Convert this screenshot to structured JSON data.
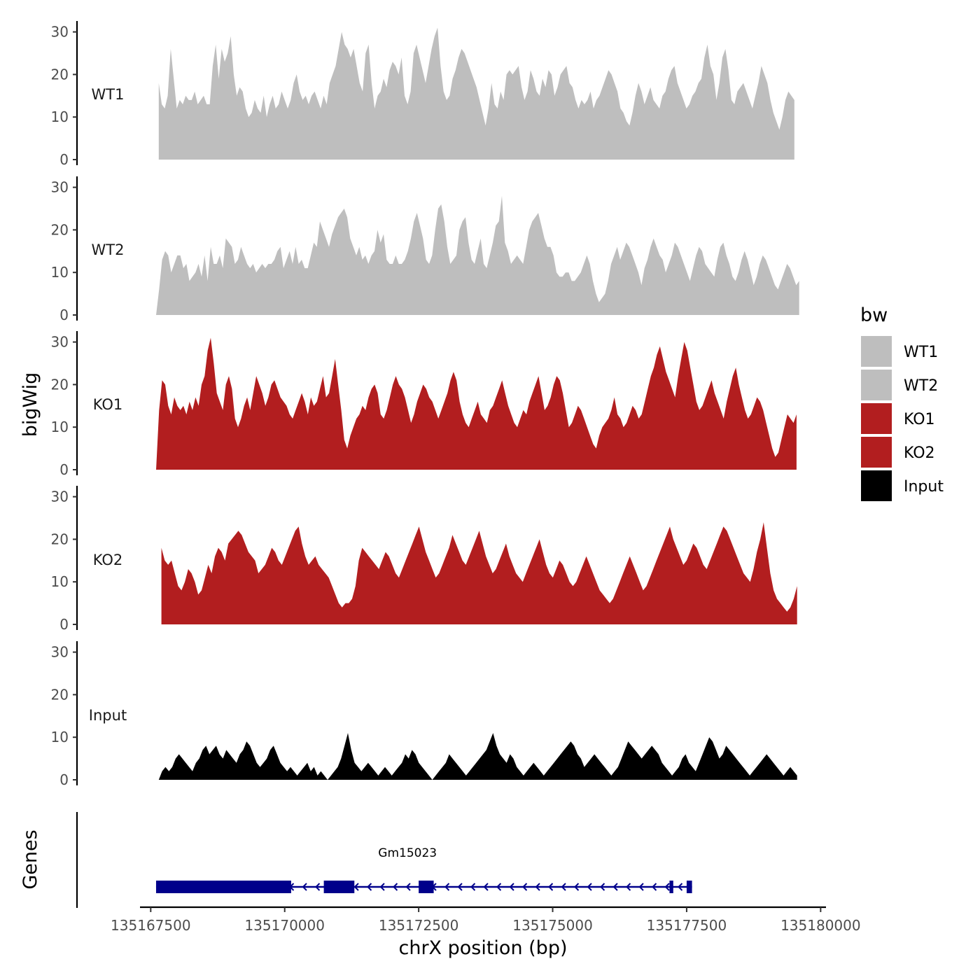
{
  "chart_data": {
    "type": "area",
    "title": "",
    "xlabel": "chrX position (bp)",
    "ylabel": "bigWig",
    "genes_label": "Genes",
    "xlim": [
      135167300,
      135180100
    ],
    "x_ticks": [
      135167500,
      135170000,
      135172500,
      135175000,
      135177500,
      135180000
    ],
    "x_tick_labels": [
      "135167500",
      "135170000",
      "135172500",
      "135175000",
      "135177500",
      "135180000"
    ],
    "ylim": [
      0,
      32
    ],
    "y_ticks": [
      0,
      10,
      20,
      30
    ],
    "y_tick_labels": [
      "0",
      "10",
      "20",
      "30"
    ],
    "legend": {
      "title": "bw",
      "position": "right",
      "entries": [
        {
          "label": "WT1",
          "color": "#bebebe"
        },
        {
          "label": "WT2",
          "color": "#bebebe"
        },
        {
          "label": "KO1",
          "color": "#b21e1f"
        },
        {
          "label": "KO2",
          "color": "#b21e1f"
        },
        {
          "label": "Input",
          "color": "#000000"
        }
      ]
    },
    "series": [
      {
        "name": "WT1",
        "color": "#bebebe",
        "start": 135167650,
        "end": 135179510,
        "values": [
          18,
          13,
          12,
          15,
          26,
          19,
          12,
          14,
          13,
          15,
          14,
          14,
          16,
          13,
          14,
          15,
          13,
          13,
          22,
          27,
          19,
          26,
          23,
          25,
          29,
          20,
          15,
          17,
          16,
          12,
          10,
          11,
          14,
          12,
          11,
          15,
          10,
          13,
          15,
          12,
          13,
          16,
          14,
          12,
          14,
          18,
          20,
          16,
          14,
          15,
          13,
          15,
          16,
          14,
          12,
          15,
          13,
          18,
          20,
          22,
          26,
          30,
          27,
          26,
          24,
          26,
          22,
          18,
          16,
          25,
          27,
          18,
          12,
          15,
          16,
          19,
          17,
          21,
          23,
          22,
          20,
          24,
          15,
          13,
          16,
          25,
          27,
          24,
          21,
          18,
          22,
          26,
          29,
          31,
          22,
          16,
          14,
          15,
          19,
          21,
          24,
          26,
          25,
          23,
          21,
          19,
          17,
          14,
          11,
          8,
          12,
          18,
          13,
          12,
          16,
          14,
          20,
          21,
          20,
          21,
          22,
          17,
          14,
          16,
          21,
          19,
          16,
          15,
          19,
          17,
          21,
          20,
          15,
          17,
          20,
          21,
          22,
          18,
          17,
          14,
          12,
          14,
          13,
          14,
          16,
          12,
          14,
          15,
          17,
          19,
          21,
          20,
          18,
          16,
          12,
          11,
          9,
          8,
          11,
          15,
          18,
          16,
          13,
          15,
          17,
          14,
          13,
          12,
          15,
          16,
          19,
          21,
          22,
          18,
          16,
          14,
          12,
          13,
          15,
          16,
          18,
          19,
          24,
          27,
          22,
          20,
          14,
          18,
          24,
          26,
          21,
          14,
          13,
          16,
          17,
          18,
          16,
          14,
          12,
          15,
          18,
          22,
          20,
          18,
          14,
          11,
          9,
          7,
          10,
          14,
          16,
          15,
          14
        ]
      },
      {
        "name": "WT2",
        "color": "#bebebe",
        "start": 135167600,
        "end": 135179600,
        "values": [
          0,
          6,
          13,
          15,
          14,
          10,
          12,
          14,
          14,
          11,
          12,
          8,
          9,
          10,
          12,
          9,
          14,
          8,
          16,
          12,
          12,
          14,
          11,
          18,
          17,
          16,
          12,
          13,
          16,
          14,
          12,
          11,
          12,
          10,
          11,
          12,
          11,
          12,
          12,
          13,
          15,
          16,
          11,
          13,
          15,
          12,
          16,
          12,
          13,
          11,
          11,
          14,
          17,
          16,
          22,
          20,
          18,
          16,
          19,
          21,
          23,
          24,
          25,
          23,
          18,
          16,
          14,
          16,
          13,
          14,
          12,
          14,
          15,
          20,
          17,
          19,
          13,
          12,
          12,
          14,
          12,
          12,
          13,
          15,
          18,
          22,
          24,
          21,
          18,
          13,
          12,
          14,
          20,
          25,
          26,
          22,
          16,
          12,
          13,
          14,
          20,
          22,
          23,
          17,
          13,
          12,
          15,
          18,
          12,
          11,
          14,
          17,
          21,
          22,
          28,
          17,
          15,
          12,
          13,
          14,
          13,
          12,
          16,
          20,
          22,
          23,
          24,
          21,
          18,
          16,
          16,
          14,
          10,
          9,
          9,
          10,
          10,
          8,
          8,
          9,
          10,
          12,
          14,
          12,
          8,
          5,
          3,
          4,
          5,
          8,
          12,
          14,
          16,
          13,
          15,
          17,
          16,
          14,
          12,
          10,
          7,
          11,
          13,
          16,
          18,
          16,
          14,
          13,
          10,
          12,
          14,
          17,
          16,
          14,
          12,
          10,
          8,
          11,
          14,
          16,
          15,
          12,
          11,
          10,
          9,
          13,
          16,
          17,
          14,
          12,
          9,
          8,
          10,
          13,
          15,
          13,
          10,
          7,
          9,
          12,
          14,
          13,
          11,
          9,
          7,
          6,
          8,
          10,
          12,
          11,
          9,
          7,
          8
        ]
      },
      {
        "name": "KO1",
        "color": "#b21e1f",
        "start": 135167600,
        "end": 135179550,
        "values": [
          0,
          14,
          21,
          20,
          15,
          13,
          17,
          15,
          14,
          15,
          13,
          16,
          14,
          17,
          15,
          20,
          22,
          28,
          31,
          25,
          18,
          16,
          14,
          20,
          22,
          19,
          12,
          10,
          12,
          15,
          17,
          14,
          18,
          22,
          20,
          18,
          15,
          17,
          20,
          21,
          19,
          17,
          16,
          15,
          13,
          12,
          14,
          16,
          18,
          16,
          13,
          17,
          15,
          16,
          19,
          22,
          17,
          18,
          22,
          26,
          20,
          14,
          7,
          5,
          8,
          10,
          12,
          13,
          15,
          14,
          17,
          19,
          20,
          18,
          13,
          12,
          14,
          17,
          20,
          22,
          20,
          19,
          17,
          14,
          11,
          13,
          16,
          18,
          20,
          19,
          17,
          16,
          14,
          12,
          14,
          16,
          18,
          21,
          23,
          21,
          16,
          13,
          11,
          10,
          12,
          14,
          16,
          13,
          12,
          11,
          14,
          15,
          17,
          19,
          21,
          18,
          15,
          13,
          11,
          10,
          12,
          14,
          13,
          16,
          18,
          20,
          22,
          18,
          14,
          15,
          17,
          20,
          22,
          21,
          18,
          14,
          10,
          11,
          13,
          15,
          14,
          12,
          10,
          8,
          6,
          5,
          8,
          10,
          11,
          12,
          14,
          17,
          13,
          12,
          10,
          11,
          13,
          15,
          14,
          12,
          13,
          16,
          19,
          22,
          24,
          27,
          29,
          26,
          23,
          21,
          19,
          17,
          22,
          26,
          30,
          28,
          24,
          20,
          16,
          14,
          15,
          17,
          19,
          21,
          18,
          16,
          14,
          12,
          16,
          19,
          22,
          24,
          20,
          17,
          14,
          12,
          13,
          15,
          17,
          16,
          14,
          11,
          8,
          5,
          3,
          4,
          7,
          10,
          13,
          12,
          11,
          13
        ]
      },
      {
        "name": "KO2",
        "color": "#b21e1f",
        "start": 135167700,
        "end": 135179560,
        "values": [
          18,
          15,
          14,
          15,
          12,
          9,
          8,
          10,
          13,
          12,
          10,
          7,
          8,
          11,
          14,
          12,
          16,
          18,
          17,
          15,
          19,
          20,
          21,
          22,
          21,
          19,
          17,
          16,
          15,
          12,
          13,
          14,
          16,
          18,
          17,
          15,
          14,
          16,
          18,
          20,
          22,
          23,
          19,
          16,
          14,
          15,
          16,
          14,
          13,
          12,
          11,
          9,
          7,
          5,
          4,
          5,
          5,
          6,
          9,
          15,
          18,
          17,
          16,
          15,
          14,
          13,
          15,
          17,
          16,
          14,
          12,
          11,
          13,
          15,
          17,
          19,
          21,
          23,
          20,
          17,
          15,
          13,
          11,
          12,
          14,
          16,
          18,
          21,
          19,
          17,
          15,
          14,
          16,
          18,
          20,
          22,
          19,
          16,
          14,
          12,
          13,
          15,
          17,
          19,
          16,
          14,
          12,
          11,
          10,
          12,
          14,
          16,
          18,
          20,
          17,
          14,
          12,
          11,
          13,
          15,
          14,
          12,
          10,
          9,
          10,
          12,
          14,
          16,
          14,
          12,
          10,
          8,
          7,
          6,
          5,
          6,
          8,
          10,
          12,
          14,
          16,
          14,
          12,
          10,
          8,
          9,
          11,
          13,
          15,
          17,
          19,
          21,
          23,
          20,
          18,
          16,
          14,
          15,
          17,
          19,
          18,
          16,
          14,
          13,
          15,
          17,
          19,
          21,
          23,
          22,
          20,
          18,
          16,
          14,
          12,
          11,
          10,
          13,
          17,
          20,
          24,
          18,
          12,
          8,
          6,
          5,
          4,
          3,
          4,
          6,
          9
        ]
      },
      {
        "name": "Input",
        "color": "#000000",
        "start": 135167650,
        "end": 135179560,
        "values": [
          0,
          2,
          3,
          2,
          3,
          5,
          6,
          5,
          4,
          3,
          2,
          4,
          5,
          7,
          8,
          6,
          7,
          8,
          6,
          5,
          7,
          6,
          5,
          4,
          6,
          7,
          9,
          8,
          6,
          4,
          3,
          4,
          5,
          7,
          8,
          6,
          4,
          3,
          2,
          3,
          2,
          1,
          2,
          3,
          4,
          2,
          3,
          1,
          2,
          1,
          0,
          1,
          2,
          3,
          5,
          8,
          11,
          7,
          4,
          3,
          2,
          3,
          4,
          3,
          2,
          1,
          2,
          3,
          2,
          1,
          2,
          3,
          4,
          6,
          5,
          7,
          6,
          4,
          3,
          2,
          1,
          0,
          1,
          2,
          3,
          4,
          6,
          5,
          4,
          3,
          2,
          1,
          2,
          3,
          4,
          5,
          6,
          7,
          9,
          11,
          8,
          6,
          5,
          4,
          6,
          5,
          3,
          2,
          1,
          2,
          3,
          4,
          3,
          2,
          1,
          2,
          3,
          4,
          5,
          6,
          7,
          8,
          9,
          8,
          6,
          5,
          3,
          4,
          5,
          6,
          5,
          4,
          3,
          2,
          1,
          2,
          3,
          5,
          7,
          9,
          8,
          7,
          6,
          5,
          6,
          7,
          8,
          7,
          6,
          4,
          3,
          2,
          1,
          2,
          3,
          5,
          6,
          4,
          3,
          2,
          4,
          6,
          8,
          10,
          9,
          7,
          5,
          6,
          8,
          7,
          6,
          5,
          4,
          3,
          2,
          1,
          2,
          3,
          4,
          5,
          6,
          5,
          4,
          3,
          2,
          1,
          2,
          3,
          2,
          1
        ]
      }
    ],
    "gene": {
      "name": "Gm15023",
      "strand": "-",
      "start": 135167600,
      "end": 135177600,
      "exons": [
        [
          135167600,
          135170120
        ],
        [
          135170730,
          135171300
        ],
        [
          135172500,
          135172780
        ],
        [
          135177180,
          135177250
        ],
        [
          135177500,
          135177600
        ]
      ]
    }
  }
}
